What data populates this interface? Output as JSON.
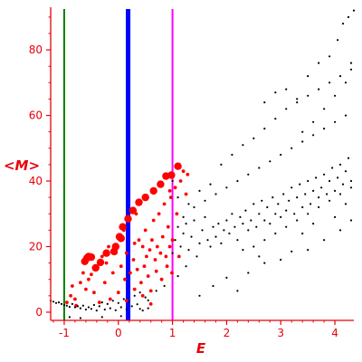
{
  "chart_data": {
    "type": "scatter",
    "xlabel": "E",
    "ylabel": "<M>",
    "xlim": [
      -1.25,
      4.35
    ],
    "ylim": [
      -2.5,
      93
    ],
    "x_ticks": [
      "-1",
      "0",
      "1",
      "2",
      "3",
      "4"
    ],
    "y_ticks": [
      "0",
      "20",
      "40",
      "60",
      "80"
    ],
    "grid": false,
    "vertical_lines": [
      {
        "x": -1.0,
        "color": "#008000",
        "width": "thin"
      },
      {
        "x": 0.18,
        "color": "#0000ff",
        "width": "thick"
      },
      {
        "x": 1.0,
        "color": "#ff00ff",
        "width": "thin"
      }
    ],
    "series": [
      {
        "color": "#ff0000",
        "marker": "large-dot",
        "points": [
          [
            -0.62,
            15.5
          ],
          [
            -0.58,
            16.5
          ],
          [
            -0.55,
            17.0
          ],
          [
            -0.5,
            16.8
          ],
          [
            -0.42,
            13.5
          ],
          [
            -0.33,
            15.2
          ],
          [
            -0.22,
            18.0
          ],
          [
            -0.08,
            18.5
          ],
          [
            -0.05,
            20.0
          ],
          [
            0.02,
            23.0
          ],
          [
            0.05,
            22.5
          ],
          [
            0.08,
            26.0
          ],
          [
            0.18,
            28.5
          ],
          [
            0.27,
            31.0
          ],
          [
            0.38,
            33.5
          ],
          [
            0.5,
            35.0
          ],
          [
            0.65,
            37.0
          ],
          [
            0.78,
            39.0
          ],
          [
            0.88,
            41.5
          ],
          [
            0.98,
            41.8
          ],
          [
            1.1,
            44.5
          ]
        ]
      },
      {
        "color": "#ff0000",
        "marker": "small-dot",
        "points": [
          [
            -0.95,
            3.0
          ],
          [
            -0.88,
            5.0
          ],
          [
            -0.8,
            4.0
          ],
          [
            -0.85,
            8.0
          ],
          [
            -0.78,
            2.0
          ],
          [
            -0.7,
            9.0
          ],
          [
            -0.65,
            12.0
          ],
          [
            -0.6,
            7.0
          ],
          [
            -0.55,
            10.0
          ],
          [
            -0.5,
            11.5
          ],
          [
            -0.45,
            6.0
          ],
          [
            -0.4,
            13.0
          ],
          [
            -0.35,
            3.0
          ],
          [
            -0.3,
            17.0
          ],
          [
            -0.25,
            9.0
          ],
          [
            -0.22,
            15.0
          ],
          [
            -0.18,
            20.0
          ],
          [
            -0.1,
            12.0
          ],
          [
            -0.05,
            18.0
          ],
          [
            0.0,
            6.0
          ],
          [
            0.05,
            14.0
          ],
          [
            0.1,
            25.0
          ],
          [
            0.12,
            10.0
          ],
          [
            0.15,
            18.0
          ],
          [
            0.2,
            28.0
          ],
          [
            0.22,
            12.0
          ],
          [
            0.28,
            16.0
          ],
          [
            0.3,
            21.0
          ],
          [
            0.33,
            30.0
          ],
          [
            0.35,
            13.0
          ],
          [
            0.38,
            22.0
          ],
          [
            0.42,
            9.0
          ],
          [
            0.45,
            20.0
          ],
          [
            0.48,
            14.0
          ],
          [
            0.5,
            25.0
          ],
          [
            0.52,
            17.0
          ],
          [
            0.55,
            11.0
          ],
          [
            0.58,
            19.0
          ],
          [
            0.6,
            6.5
          ],
          [
            0.62,
            22.0
          ],
          [
            0.65,
            28.0
          ],
          [
            0.68,
            16.0
          ],
          [
            0.7,
            12.5
          ],
          [
            0.72,
            20.0
          ],
          [
            0.75,
            30.0
          ],
          [
            0.78,
            18.0
          ],
          [
            0.8,
            10.0
          ],
          [
            0.82,
            23.0
          ],
          [
            0.85,
            33.0
          ],
          [
            0.88,
            17.0
          ],
          [
            0.9,
            14.0
          ],
          [
            0.92,
            26.0
          ],
          [
            0.95,
            20.0
          ],
          [
            0.97,
            35.0
          ],
          [
            0.99,
            12.0
          ],
          [
            1.0,
            22.0
          ],
          [
            0.95,
            37.0
          ],
          [
            1.05,
            38.0
          ],
          [
            1.08,
            30.0
          ],
          [
            1.12,
            17.0
          ],
          [
            1.15,
            40.0
          ],
          [
            1.2,
            43.0
          ],
          [
            1.25,
            36.0
          ],
          [
            1.28,
            42.0
          ],
          [
            0.3,
            7.0
          ],
          [
            0.45,
            5.0
          ],
          [
            0.6,
            2.5
          ],
          [
            -0.15,
            4.0
          ],
          [
            0.15,
            3.5
          ]
        ]
      },
      {
        "color": "#000000",
        "marker": "tiny-dot",
        "points": [
          [
            -1.25,
            3.5
          ],
          [
            -1.2,
            3.2
          ],
          [
            -1.15,
            2.8
          ],
          [
            -1.1,
            3.0
          ],
          [
            -1.05,
            2.5
          ],
          [
            -1.0,
            2.2
          ],
          [
            -0.95,
            2.0
          ],
          [
            -0.9,
            1.6
          ],
          [
            -0.85,
            2.5
          ],
          [
            -0.8,
            1.5
          ],
          [
            -0.75,
            1.8
          ],
          [
            -0.7,
            1.2
          ],
          [
            -0.65,
            2.0
          ],
          [
            -0.6,
            0.8
          ],
          [
            -0.55,
            1.5
          ],
          [
            -0.5,
            1.0
          ],
          [
            -0.45,
            2.2
          ],
          [
            -0.4,
            0.5
          ],
          [
            -0.35,
            1.8
          ],
          [
            -0.3,
            3.0
          ],
          [
            -0.25,
            0.8
          ],
          [
            -0.2,
            2.5
          ],
          [
            -0.15,
            1.2
          ],
          [
            -0.1,
            3.5
          ],
          [
            -0.05,
            0.6
          ],
          [
            0.0,
            2.8
          ],
          [
            0.05,
            1.5
          ],
          [
            0.1,
            4.0
          ],
          [
            0.15,
            0.9
          ],
          [
            0.2,
            3.2
          ],
          [
            0.25,
            1.8
          ],
          [
            0.3,
            5.0
          ],
          [
            0.35,
            2.4
          ],
          [
            0.4,
            6.0
          ],
          [
            0.45,
            0.5
          ],
          [
            0.5,
            4.5
          ],
          [
            0.55,
            1.2
          ],
          [
            -0.9,
            -1.5
          ],
          [
            -0.7,
            -1.8
          ],
          [
            -0.3,
            -1.5
          ],
          [
            0.05,
            -1.2
          ],
          [
            0.4,
            1.0
          ],
          [
            0.55,
            3.6
          ],
          [
            0.7,
            6.5
          ],
          [
            0.85,
            8.0
          ],
          [
            1.1,
            11.0
          ],
          [
            1.25,
            14.0
          ],
          [
            1.5,
            5.0
          ],
          [
            1.75,
            8.0
          ],
          [
            2.0,
            10.5
          ],
          [
            2.2,
            6.5
          ],
          [
            2.4,
            12.0
          ],
          [
            2.7,
            15.0
          ],
          [
            3.0,
            16.0
          ],
          [
            3.2,
            18.5
          ],
          [
            3.5,
            19.0
          ],
          [
            3.8,
            22.0
          ],
          [
            4.1,
            25.0
          ],
          [
            4.3,
            28.0
          ],
          [
            1.0,
            18.0
          ],
          [
            1.05,
            22.0
          ],
          [
            1.1,
            26.0
          ],
          [
            1.15,
            20.0
          ],
          [
            1.2,
            24.0
          ],
          [
            1.25,
            27.0
          ],
          [
            1.3,
            19.0
          ],
          [
            1.35,
            23.0
          ],
          [
            1.4,
            28.0
          ],
          [
            1.45,
            17.0
          ],
          [
            1.5,
            21.0
          ],
          [
            1.55,
            25.0
          ],
          [
            1.6,
            29.0
          ],
          [
            1.65,
            22.0
          ],
          [
            1.7,
            20.0
          ],
          [
            1.75,
            26.0
          ],
          [
            1.8,
            23.0
          ],
          [
            1.85,
            27.0
          ],
          [
            1.9,
            21.0
          ],
          [
            1.95,
            25.0
          ],
          [
            2.0,
            28.0
          ],
          [
            2.05,
            24.0
          ],
          [
            2.1,
            30.0
          ],
          [
            2.15,
            26.0
          ],
          [
            2.2,
            22.0
          ],
          [
            2.25,
            29.0
          ],
          [
            2.3,
            27.0
          ],
          [
            2.35,
            31.0
          ],
          [
            2.4,
            25.0
          ],
          [
            2.45,
            28.0
          ],
          [
            2.5,
            33.0
          ],
          [
            2.55,
            26.0
          ],
          [
            2.6,
            30.0
          ],
          [
            2.65,
            34.0
          ],
          [
            2.7,
            28.0
          ],
          [
            2.75,
            32.0
          ],
          [
            2.8,
            27.0
          ],
          [
            2.85,
            35.0
          ],
          [
            2.9,
            30.0
          ],
          [
            2.95,
            33.0
          ],
          [
            3.0,
            29.0
          ],
          [
            3.05,
            36.0
          ],
          [
            3.1,
            31.0
          ],
          [
            3.15,
            34.0
          ],
          [
            3.2,
            38.0
          ],
          [
            3.25,
            30.0
          ],
          [
            3.3,
            35.0
          ],
          [
            3.35,
            39.0
          ],
          [
            3.4,
            32.0
          ],
          [
            3.45,
            36.0
          ],
          [
            3.5,
            40.0
          ],
          [
            3.55,
            33.0
          ],
          [
            3.6,
            37.0
          ],
          [
            3.65,
            41.0
          ],
          [
            3.7,
            35.0
          ],
          [
            3.75,
            38.0
          ],
          [
            3.8,
            42.0
          ],
          [
            3.85,
            36.0
          ],
          [
            3.9,
            40.0
          ],
          [
            3.95,
            44.0
          ],
          [
            4.0,
            37.0
          ],
          [
            4.05,
            41.0
          ],
          [
            4.1,
            45.0
          ],
          [
            4.15,
            39.0
          ],
          [
            4.2,
            43.0
          ],
          [
            4.25,
            47.0
          ],
          [
            4.3,
            40.0
          ],
          [
            1.2,
            29.0
          ],
          [
            1.4,
            32.0
          ],
          [
            1.6,
            34.0
          ],
          [
            1.8,
            36.0
          ],
          [
            2.0,
            38.0
          ],
          [
            2.2,
            40.0
          ],
          [
            2.4,
            42.0
          ],
          [
            2.6,
            44.0
          ],
          [
            2.8,
            46.0
          ],
          [
            3.0,
            48.0
          ],
          [
            3.2,
            50.0
          ],
          [
            3.4,
            52.0
          ],
          [
            3.6,
            54.0
          ],
          [
            3.8,
            56.0
          ],
          [
            4.0,
            58.0
          ],
          [
            4.2,
            60.0
          ],
          [
            2.5,
            20.0
          ],
          [
            2.7,
            22.0
          ],
          [
            2.9,
            24.0
          ],
          [
            3.1,
            26.0
          ],
          [
            3.3,
            28.0
          ],
          [
            3.5,
            30.0
          ],
          [
            3.7,
            32.0
          ],
          [
            3.9,
            34.0
          ],
          [
            4.1,
            36.0
          ],
          [
            4.3,
            38.0
          ],
          [
            1.9,
            45.0
          ],
          [
            2.1,
            48.0
          ],
          [
            2.3,
            51.0
          ],
          [
            2.5,
            53.0
          ],
          [
            2.7,
            56.0
          ],
          [
            2.9,
            59.0
          ],
          [
            3.1,
            62.0
          ],
          [
            3.3,
            64.0
          ],
          [
            3.5,
            66.0
          ],
          [
            3.7,
            68.0
          ],
          [
            3.9,
            70.0
          ],
          [
            4.1,
            72.0
          ],
          [
            4.3,
            74.0
          ],
          [
            2.7,
            64.0
          ],
          [
            2.9,
            67.0
          ],
          [
            3.1,
            68.0
          ],
          [
            3.3,
            65.0
          ],
          [
            3.5,
            72.0
          ],
          [
            3.7,
            76.0
          ],
          [
            3.9,
            78.0
          ],
          [
            4.05,
            83.0
          ],
          [
            4.15,
            88.0
          ],
          [
            4.25,
            90.0
          ],
          [
            4.35,
            92.0
          ],
          [
            3.8,
            62.0
          ],
          [
            4.0,
            66.0
          ],
          [
            4.2,
            70.0
          ],
          [
            4.3,
            76.0
          ],
          [
            3.6,
            58.0
          ],
          [
            3.4,
            55.0
          ],
          [
            1.3,
            33.0
          ],
          [
            1.5,
            37.0
          ],
          [
            1.7,
            39.0
          ],
          [
            1.1,
            35.0
          ],
          [
            1.0,
            40.0
          ],
          [
            2.3,
            19.0
          ],
          [
            2.6,
            17.0
          ],
          [
            3.4,
            24.0
          ],
          [
            3.6,
            27.0
          ],
          [
            4.0,
            29.0
          ],
          [
            4.2,
            33.0
          ]
        ]
      }
    ]
  }
}
